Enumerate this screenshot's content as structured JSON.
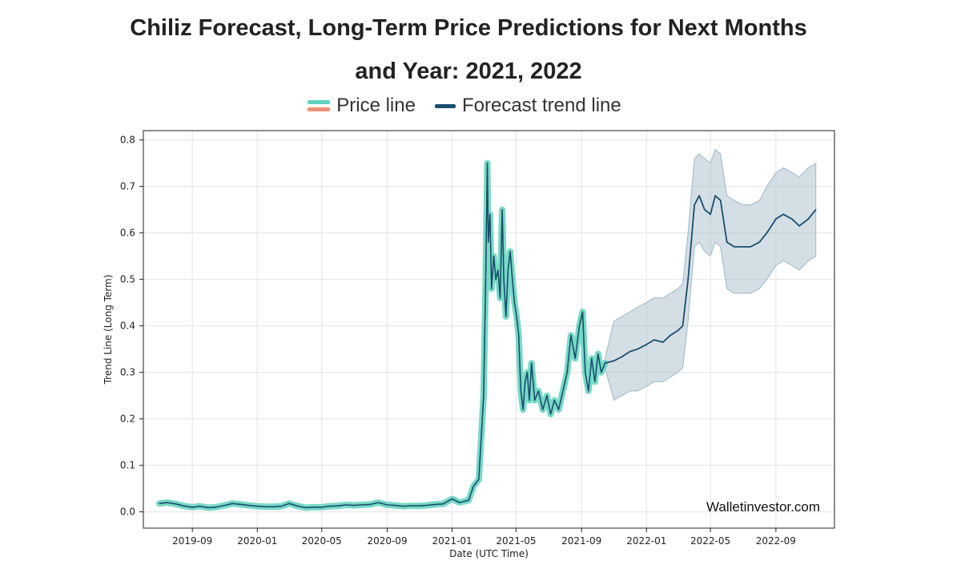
{
  "header": {
    "title_part1": "Chiliz",
    "title_part2": " Forecast, ",
    "title_part3": "Long-Term",
    "title_part4": " Price Predictions for Next Months",
    "title_line2": "and Year: 2021, 2022"
  },
  "legend": {
    "price_label": "Price line",
    "forecast_label": "Forecast trend line"
  },
  "watermark": "Walletinvestor.com",
  "colors": {
    "price_line": "#5fd3bc",
    "price_line_alt": "#ef8f75",
    "forecast_line": "#194e6e",
    "confidence_band": "#9fb7c6",
    "grid": "#e4e4e4"
  },
  "chart_data": {
    "type": "line",
    "xlabel": "Date (UTC Time)",
    "ylabel": "Trend Line (Long Term)",
    "ylim": [
      -0.035,
      0.82
    ],
    "xlim": [
      "2019-06-01",
      "2022-12-20"
    ],
    "x_ticks": [
      "2019-09",
      "2020-01",
      "2020-05",
      "2020-09",
      "2021-01",
      "2021-05",
      "2021-09",
      "2022-01",
      "2022-05",
      "2022-09"
    ],
    "y_ticks": [
      0.0,
      0.1,
      0.2,
      0.3,
      0.4,
      0.5,
      0.6,
      0.7,
      0.8
    ],
    "grid": true,
    "legend_position": "top-center",
    "series": [
      {
        "name": "Price line",
        "x": [
          "2019-07-01",
          "2019-07-15",
          "2019-08-01",
          "2019-08-15",
          "2019-09-01",
          "2019-09-15",
          "2019-10-01",
          "2019-10-15",
          "2019-11-01",
          "2019-11-15",
          "2019-12-01",
          "2019-12-15",
          "2020-01-01",
          "2020-01-15",
          "2020-02-01",
          "2020-02-15",
          "2020-03-01",
          "2020-03-15",
          "2020-04-01",
          "2020-04-15",
          "2020-05-01",
          "2020-05-15",
          "2020-06-01",
          "2020-06-15",
          "2020-07-01",
          "2020-07-15",
          "2020-08-01",
          "2020-08-15",
          "2020-09-01",
          "2020-09-15",
          "2020-10-01",
          "2020-10-15",
          "2020-11-01",
          "2020-11-15",
          "2020-12-01",
          "2020-12-15",
          "2021-01-01",
          "2021-01-15",
          "2021-02-01",
          "2021-02-10",
          "2021-02-20",
          "2021-03-01",
          "2021-03-05",
          "2021-03-08",
          "2021-03-10",
          "2021-03-13",
          "2021-03-16",
          "2021-03-20",
          "2021-03-24",
          "2021-03-28",
          "2021-04-01",
          "2021-04-05",
          "2021-04-08",
          "2021-04-12",
          "2021-04-16",
          "2021-04-20",
          "2021-04-24",
          "2021-04-28",
          "2021-05-02",
          "2021-05-06",
          "2021-05-10",
          "2021-05-14",
          "2021-05-18",
          "2021-05-22",
          "2021-05-26",
          "2021-05-30",
          "2021-06-05",
          "2021-06-12",
          "2021-06-20",
          "2021-06-28",
          "2021-07-05",
          "2021-07-12",
          "2021-07-20",
          "2021-07-28",
          "2021-08-05",
          "2021-08-12",
          "2021-08-20",
          "2021-08-28",
          "2021-09-03",
          "2021-09-08",
          "2021-09-14",
          "2021-09-20",
          "2021-09-26",
          "2021-10-02",
          "2021-10-08",
          "2021-10-15"
        ],
        "values": [
          0.018,
          0.02,
          0.017,
          0.013,
          0.01,
          0.012,
          0.009,
          0.01,
          0.014,
          0.018,
          0.016,
          0.014,
          0.012,
          0.011,
          0.011,
          0.012,
          0.018,
          0.013,
          0.009,
          0.01,
          0.01,
          0.012,
          0.013,
          0.015,
          0.014,
          0.015,
          0.016,
          0.02,
          0.015,
          0.014,
          0.012,
          0.013,
          0.013,
          0.014,
          0.016,
          0.017,
          0.028,
          0.02,
          0.025,
          0.055,
          0.07,
          0.25,
          0.5,
          0.75,
          0.58,
          0.64,
          0.48,
          0.55,
          0.5,
          0.52,
          0.46,
          0.65,
          0.5,
          0.42,
          0.52,
          0.56,
          0.5,
          0.45,
          0.42,
          0.38,
          0.26,
          0.22,
          0.28,
          0.3,
          0.24,
          0.32,
          0.24,
          0.26,
          0.22,
          0.25,
          0.21,
          0.24,
          0.22,
          0.26,
          0.3,
          0.38,
          0.33,
          0.4,
          0.43,
          0.3,
          0.26,
          0.33,
          0.28,
          0.34,
          0.3,
          0.32
        ]
      },
      {
        "name": "Forecast trend line",
        "x": [
          "2021-10-15",
          "2021-11-01",
          "2021-11-15",
          "2021-12-01",
          "2021-12-15",
          "2022-01-01",
          "2022-01-15",
          "2022-02-01",
          "2022-02-15",
          "2022-03-01",
          "2022-03-10",
          "2022-03-20",
          "2022-04-01",
          "2022-04-10",
          "2022-04-20",
          "2022-05-01",
          "2022-05-10",
          "2022-05-20",
          "2022-06-01",
          "2022-06-15",
          "2022-07-01",
          "2022-07-15",
          "2022-08-01",
          "2022-08-15",
          "2022-09-01",
          "2022-09-15",
          "2022-10-01",
          "2022-10-15",
          "2022-11-01",
          "2022-11-15"
        ],
        "values": [
          0.32,
          0.325,
          0.333,
          0.345,
          0.35,
          0.36,
          0.37,
          0.365,
          0.38,
          0.39,
          0.4,
          0.5,
          0.66,
          0.68,
          0.65,
          0.64,
          0.68,
          0.67,
          0.58,
          0.57,
          0.57,
          0.57,
          0.58,
          0.6,
          0.63,
          0.64,
          0.63,
          0.615,
          0.63,
          0.65
        ],
        "upper": [
          0.33,
          0.41,
          0.42,
          0.43,
          0.44,
          0.45,
          0.46,
          0.46,
          0.47,
          0.48,
          0.49,
          0.6,
          0.76,
          0.77,
          0.76,
          0.75,
          0.78,
          0.77,
          0.68,
          0.67,
          0.66,
          0.66,
          0.67,
          0.7,
          0.73,
          0.74,
          0.73,
          0.72,
          0.74,
          0.75
        ],
        "lower": [
          0.31,
          0.24,
          0.25,
          0.26,
          0.26,
          0.27,
          0.28,
          0.28,
          0.29,
          0.3,
          0.31,
          0.41,
          0.57,
          0.58,
          0.56,
          0.55,
          0.58,
          0.57,
          0.48,
          0.47,
          0.47,
          0.47,
          0.48,
          0.5,
          0.53,
          0.54,
          0.53,
          0.52,
          0.54,
          0.55
        ]
      }
    ]
  }
}
